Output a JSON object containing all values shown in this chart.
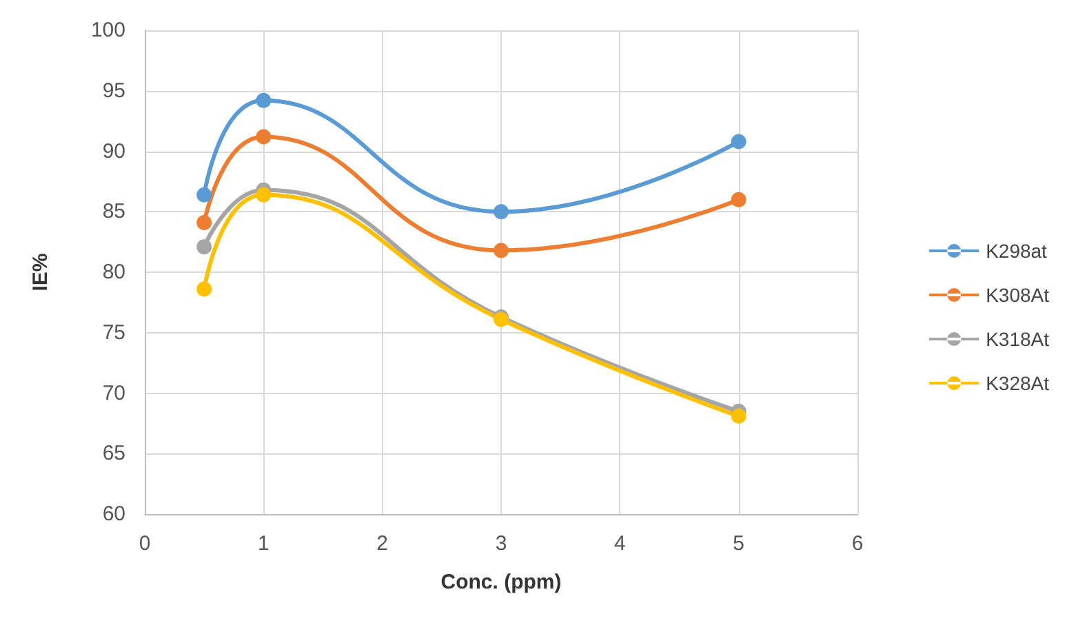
{
  "chart_data": {
    "type": "line",
    "xlabel": "Conc. (ppm)",
    "ylabel": "IE%",
    "x": [
      0.5,
      1,
      3,
      5
    ],
    "series": [
      {
        "name": "K298at",
        "color": "#5b9bd5",
        "values": [
          86.4,
          94.2,
          85.0,
          90.8
        ]
      },
      {
        "name": "K308At",
        "color": "#ed7d31",
        "values": [
          84.1,
          91.2,
          81.8,
          86.0
        ]
      },
      {
        "name": "K318At",
        "color": "#a5a5a5",
        "values": [
          82.1,
          86.8,
          76.3,
          68.5
        ]
      },
      {
        "name": "K328At",
        "color": "#ffc000",
        "values": [
          78.6,
          86.4,
          76.1,
          68.1
        ]
      }
    ],
    "xlim": [
      0,
      6
    ],
    "xticks": [
      0,
      1,
      2,
      3,
      4,
      5,
      6
    ],
    "ylim": [
      60,
      100
    ],
    "yticks": [
      60,
      65,
      70,
      75,
      80,
      85,
      90,
      95,
      100
    ],
    "grid": true,
    "legend": "right",
    "marker": "circle",
    "line_style": "solid"
  }
}
